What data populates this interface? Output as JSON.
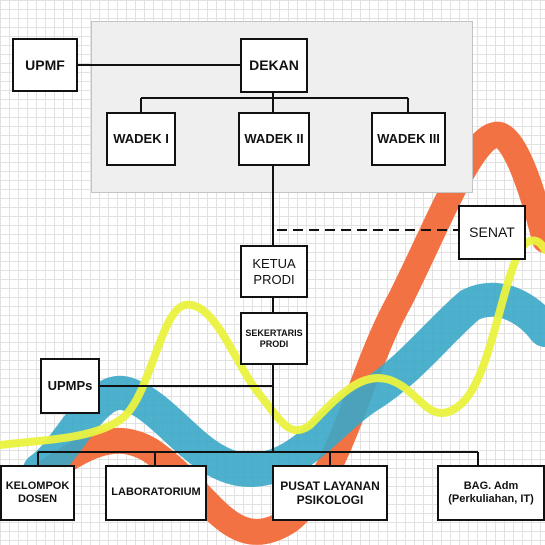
{
  "colors": {
    "orange_wave": "#f26a3a",
    "teal_wave": "#3aa7c8",
    "yellow_wave": "#eaf23f",
    "line": "#111111",
    "panel": "#efefef"
  },
  "nodes": {
    "upmf": "UPMF",
    "dekan": "DEKAN",
    "wadek1": "WADEK I",
    "wadek2": "WADEK II",
    "wadek3": "WADEK III",
    "senat": "SENAT",
    "ketua_prodi": "KETUA\nPRODI",
    "sekertaris_prodi": "SEKERTARIS\nPRODI",
    "upmps": "UPMPs",
    "kelompok_dosen": "KELOMPOK\nDOSEN",
    "laboratorium": "LABORATORIUM",
    "pusat_layanan": "PUSAT LAYANAN\nPSIKOLOGI",
    "bag_adm": "BAG. Adm\n(Perkuliahan, IT)"
  }
}
